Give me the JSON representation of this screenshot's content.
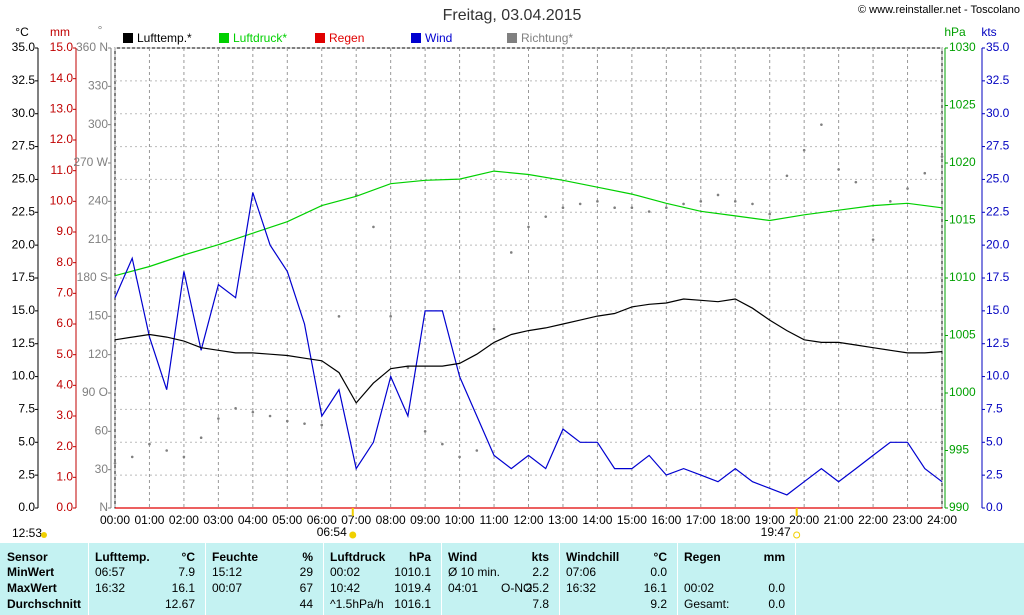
{
  "chart_data": {
    "type": "line",
    "title": "Freitag, 03.04.2015",
    "credit": "© www.reinstaller.net - Toscolano",
    "y_label": "°C",
    "mm_label": "mm",
    "deg_label": "°",
    "y2_label": "hPa",
    "kts_label": "kts",
    "xlim": [
      0,
      24
    ],
    "xticks": [
      {
        "value": 0,
        "label": "00:00"
      },
      {
        "value": 1,
        "label": "01:00"
      },
      {
        "value": 2,
        "label": "02:00"
      },
      {
        "value": 3,
        "label": "03:00"
      },
      {
        "value": 4,
        "label": "04:00"
      },
      {
        "value": 5,
        "label": "05:00"
      },
      {
        "value": 6,
        "label": "06:00"
      },
      {
        "value": 7,
        "label": "07:00"
      },
      {
        "value": 8,
        "label": "08:00"
      },
      {
        "value": 9,
        "label": "09:00"
      },
      {
        "value": 10,
        "label": "10:00"
      },
      {
        "value": 11,
        "label": "11:00"
      },
      {
        "value": 12,
        "label": "12:00"
      },
      {
        "value": 13,
        "label": "13:00"
      },
      {
        "value": 14,
        "label": "14:00"
      },
      {
        "value": 15,
        "label": "15:00"
      },
      {
        "value": 16,
        "label": "16:00"
      },
      {
        "value": 17,
        "label": "17:00"
      },
      {
        "value": 18,
        "label": "18:00"
      },
      {
        "value": 19,
        "label": "19:00"
      },
      {
        "value": 20,
        "label": "20:00"
      },
      {
        "value": 21,
        "label": "21:00"
      },
      {
        "value": 22,
        "label": "22:00"
      },
      {
        "value": 23,
        "label": "23:00"
      },
      {
        "value": 24,
        "label": "24:00"
      }
    ],
    "ylim": [
      0,
      35
    ],
    "yticks": [
      {
        "value": 0,
        "label": "0.0"
      },
      2.5,
      {
        "value": 5,
        "label": "5.0"
      },
      7.5,
      {
        "value": 10,
        "label": "10.0"
      },
      12.5,
      {
        "value": 15,
        "label": "15.0"
      },
      17.5,
      {
        "value": 20,
        "label": "20.0"
      },
      22.5,
      {
        "value": 25,
        "label": "25.0"
      },
      27.5,
      {
        "value": 30,
        "label": "30.0"
      },
      32.5,
      {
        "value": 35,
        "label": "35.0"
      }
    ],
    "mmlim": [
      0,
      15
    ],
    "mmticks": [
      {
        "value": 0,
        "label": "0.0"
      },
      {
        "value": 1,
        "label": "1.0"
      },
      {
        "value": 2,
        "label": "2.0"
      },
      {
        "value": 3,
        "label": "3.0"
      },
      {
        "value": 4,
        "label": "4.0"
      },
      {
        "value": 5,
        "label": "5.0"
      },
      {
        "value": 6,
        "label": "6.0"
      },
      {
        "value": 7,
        "label": "7.0"
      },
      {
        "value": 8,
        "label": "8.0"
      },
      {
        "value": 9,
        "label": "9.0"
      },
      {
        "value": 10,
        "label": "10.0"
      },
      {
        "value": 11,
        "label": "11.0"
      },
      {
        "value": 12,
        "label": "12.0"
      },
      {
        "value": 13,
        "label": "13.0"
      },
      {
        "value": 14,
        "label": "14.0"
      },
      {
        "value": 15,
        "label": "15.0"
      }
    ],
    "deglim": [
      0,
      360
    ],
    "degticks": [
      {
        "value": 0,
        "label": "N"
      },
      30,
      60,
      {
        "value": 90,
        "label": "90 O"
      },
      120,
      150,
      {
        "value": 180,
        "label": "180 S"
      },
      210,
      240,
      {
        "value": 270,
        "label": "270 W"
      },
      300,
      330,
      {
        "value": 360,
        "label": "360 N"
      }
    ],
    "y2lim": [
      990,
      1030
    ],
    "y2ticks": [
      990,
      995,
      1000,
      1005,
      1010,
      1015,
      1020,
      1025,
      1030
    ],
    "ktslim": [
      0,
      35
    ],
    "ktsticks": [
      {
        "value": 0,
        "label": "0.0"
      },
      2.5,
      {
        "value": 5,
        "label": "5.0"
      },
      7.5,
      {
        "value": 10,
        "label": "10.0"
      },
      12.5,
      {
        "value": 15,
        "label": "15.0"
      },
      17.5,
      {
        "value": 20,
        "label": "20.0"
      },
      22.5,
      {
        "value": 25,
        "label": "25.0"
      },
      27.5,
      {
        "value": 30,
        "label": "30.0"
      },
      32.5,
      {
        "value": 35,
        "label": "35.0"
      }
    ],
    "grid": true,
    "series": [
      {
        "name": "Lufttemp.*",
        "color": "#000000",
        "axis": "y",
        "type": "line",
        "x": [
          0,
          0.5,
          1,
          1.5,
          2,
          2.5,
          3,
          3.5,
          4,
          4.5,
          5,
          5.5,
          6,
          6.5,
          7,
          7.5,
          8,
          8.5,
          9,
          9.5,
          10,
          10.5,
          11,
          11.5,
          12,
          12.5,
          13,
          13.5,
          14,
          14.5,
          15,
          15.5,
          16,
          16.5,
          17,
          17.5,
          18,
          18.5,
          19,
          19.5,
          20,
          20.5,
          21,
          21.5,
          22,
          22.5,
          23,
          23.5,
          24
        ],
        "values": [
          12.8,
          13.0,
          13.2,
          13.0,
          12.7,
          12.2,
          12.0,
          11.8,
          11.8,
          11.7,
          11.6,
          11.4,
          11.2,
          10.3,
          8.0,
          9.5,
          10.6,
          10.8,
          10.8,
          10.8,
          11.0,
          11.7,
          12.6,
          13.2,
          13.5,
          13.7,
          14.0,
          14.3,
          14.6,
          14.8,
          15.3,
          15.5,
          15.6,
          15.9,
          15.8,
          15.7,
          15.9,
          15.2,
          14.3,
          13.5,
          12.8,
          12.6,
          12.6,
          12.4,
          12.2,
          12.0,
          11.8,
          11.8,
          11.9
        ]
      },
      {
        "name": "Luftdruck*",
        "color": "#00d000",
        "axis": "y2",
        "type": "line",
        "x": [
          0,
          1,
          2,
          3,
          4,
          5,
          6,
          7,
          8,
          9,
          10,
          11,
          12,
          13,
          14,
          15,
          16,
          17,
          18,
          19,
          20,
          21,
          22,
          23,
          24
        ],
        "values": [
          1010.2,
          1011.0,
          1012.0,
          1012.9,
          1013.9,
          1014.9,
          1016.3,
          1017.1,
          1018.2,
          1018.5,
          1018.6,
          1019.3,
          1019.0,
          1018.5,
          1017.9,
          1017.3,
          1016.5,
          1015.8,
          1015.4,
          1015.0,
          1015.5,
          1015.9,
          1016.3,
          1016.5,
          1016.1
        ]
      },
      {
        "name": "Regen",
        "color": "#e00000",
        "axis": "mm",
        "type": "line",
        "x": [
          0,
          24
        ],
        "values": [
          0,
          0
        ]
      },
      {
        "name": "Wind",
        "color": "#0000d0",
        "axis": "kts",
        "type": "line",
        "x": [
          0,
          0.5,
          1,
          1.5,
          2,
          2.5,
          3,
          3.5,
          4,
          4.5,
          5,
          5.5,
          6,
          6.5,
          7,
          7.5,
          8,
          8.5,
          9,
          9.5,
          10,
          10.5,
          11,
          11.5,
          12,
          12.5,
          13,
          13.5,
          14,
          14.5,
          15,
          15.5,
          16,
          16.5,
          17,
          17.5,
          18,
          18.5,
          19,
          19.5,
          20,
          20.5,
          21,
          21.5,
          22,
          22.5,
          23,
          23.5,
          24
        ],
        "values": [
          16,
          19,
          13,
          9,
          18,
          12,
          17,
          16,
          24,
          20,
          18,
          14,
          7,
          9,
          3,
          5,
          10,
          7,
          15,
          15,
          10,
          7,
          4,
          3,
          4,
          3,
          6,
          5,
          5,
          3,
          3,
          4,
          2.5,
          3,
          2.5,
          2,
          3,
          2,
          1.5,
          1,
          2,
          3,
          2,
          3,
          4,
          5,
          5,
          3,
          2
        ]
      },
      {
        "name": "Richtung*",
        "color": "#808080",
        "axis": "deg",
        "type": "scatter",
        "x": [
          0,
          0.5,
          1,
          1.5,
          2,
          2.5,
          3,
          3.5,
          4,
          4.5,
          5,
          5.5,
          6,
          6.5,
          7,
          7.5,
          8,
          8.5,
          9,
          9.5,
          10,
          10.5,
          11,
          11.5,
          12,
          12.5,
          13,
          13.5,
          14,
          14.5,
          15,
          15.5,
          16,
          16.5,
          17,
          17.5,
          18,
          18.5,
          19,
          19.5,
          20,
          20.5,
          21,
          21.5,
          22,
          22.5,
          23,
          23.5,
          24
        ],
        "values": [
          35,
          40,
          50,
          45,
          40,
          55,
          70,
          78,
          75,
          72,
          68,
          66,
          65,
          150,
          245,
          220,
          150,
          110,
          60,
          50,
          40,
          45,
          140,
          200,
          220,
          228,
          235,
          238,
          240,
          235,
          235,
          232,
          235,
          238,
          240,
          245,
          240,
          238,
          230,
          260,
          280,
          300,
          265,
          255,
          210,
          240,
          250,
          262,
          275
        ]
      }
    ],
    "annotations": [
      {
        "text": "12:53"
      },
      {
        "text": "06:54",
        "x": 6.9
      },
      {
        "text": "19:47",
        "x": 19.783
      }
    ]
  },
  "table": {
    "columns": [
      [
        "Sensor"
      ],
      [
        "Lufttemp.",
        "°C"
      ],
      [
        "Feuchte",
        "%"
      ],
      [
        "Luftdruck",
        "hPa"
      ],
      [
        "Wind",
        "kts"
      ],
      [
        "Windchill",
        "°C"
      ],
      [
        "Regen",
        "mm"
      ]
    ],
    "rows": [
      [
        "MinWert",
        [
          "06:57",
          "7.9"
        ],
        [
          "15:12",
          "29"
        ],
        [
          "00:02",
          "1010.1"
        ],
        [
          "Ø 10 min.",
          "2.2"
        ],
        [
          "07:06",
          "0.0"
        ]
      ],
      [
        "MaxWert",
        [
          "16:32",
          "16.1"
        ],
        [
          "00:07",
          "67"
        ],
        [
          "10:42",
          "1019.4"
        ],
        [
          "04:01",
          "O-NO",
          "25.2"
        ],
        [
          "16:32",
          "16.1"
        ],
        [
          "00:02",
          "0.0"
        ]
      ],
      [
        "Durchschnitt",
        [
          "12.67"
        ],
        [
          "44"
        ],
        [
          "^1.5hPa/h",
          "1016.1"
        ],
        [
          "7.8"
        ],
        [
          "9.2"
        ],
        [
          "Gesamt:",
          "0.0"
        ]
      ]
    ]
  }
}
